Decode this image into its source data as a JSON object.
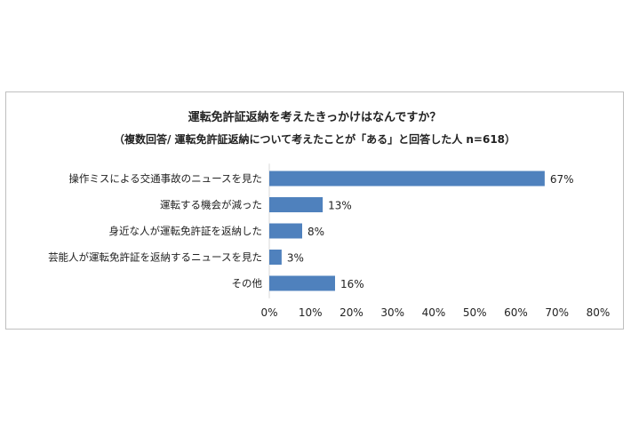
{
  "chart_data": {
    "type": "bar",
    "orientation": "horizontal",
    "title": "運転免許証返納を考えたきっかけはなんですか？",
    "subtitle": "（複数回答/ 運転免許証返納について考えたことが「ある」と回答した人 n=618）",
    "categories": [
      "操作ミスによる交通事故のニュースを見た",
      "運転する機会が減った",
      "身近な人が運転免許証を返納した",
      "芸能人が運転免許証を返納するニュースを見た",
      "その他"
    ],
    "values": [
      67,
      13,
      8,
      3,
      16
    ],
    "value_labels": [
      "67%",
      "13%",
      "8%",
      "3%",
      "16%"
    ],
    "xlim": [
      0,
      80
    ],
    "ticks": [
      0,
      10,
      20,
      30,
      40,
      50,
      60,
      70,
      80
    ],
    "tick_labels": [
      "0%",
      "10%",
      "20%",
      "30%",
      "40%",
      "50%",
      "60%",
      "70%",
      "80%"
    ],
    "bar_color": "#4f81bd",
    "grid": false,
    "legend": "none"
  }
}
